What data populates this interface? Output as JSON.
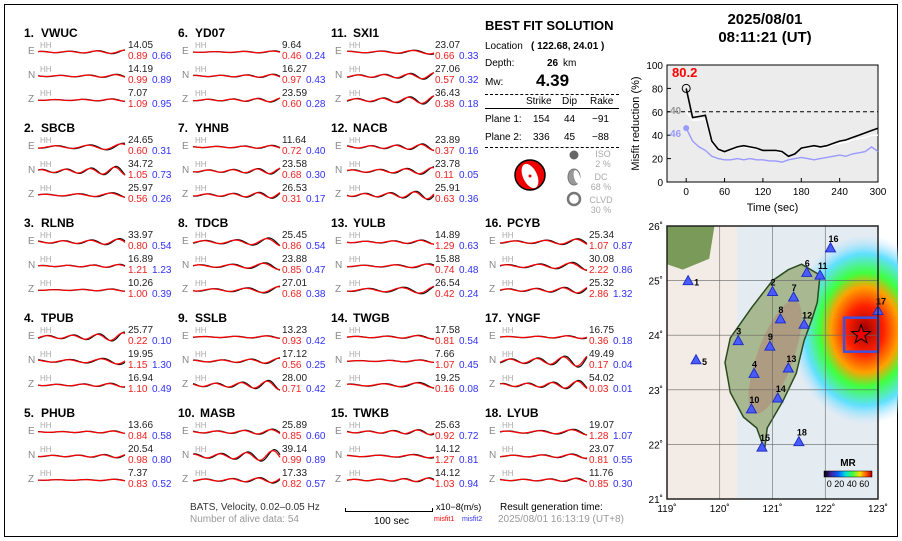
{
  "stations": [
    {
      "num": "1.",
      "name": "VWUC",
      "comps": [
        {
          "c": "E",
          "amp": "14.05",
          "m1": "0.89",
          "m2": "0.66"
        },
        {
          "c": "N",
          "amp": "14.19",
          "m1": "0.99",
          "m2": "0.89"
        },
        {
          "c": "Z",
          "amp": "7.07",
          "m1": "1.09",
          "m2": "0.95"
        }
      ]
    },
    {
      "num": "2.",
      "name": "SBCB",
      "comps": [
        {
          "c": "E",
          "amp": "24.65",
          "m1": "0.60",
          "m2": "0.31"
        },
        {
          "c": "N",
          "amp": "34.72",
          "m1": "1.05",
          "m2": "0.73"
        },
        {
          "c": "Z",
          "amp": "25.97",
          "m1": "0.56",
          "m2": "0.26"
        }
      ]
    },
    {
      "num": "3.",
      "name": "RLNB",
      "comps": [
        {
          "c": "E",
          "amp": "33.97",
          "m1": "0.80",
          "m2": "0.54"
        },
        {
          "c": "N",
          "amp": "16.89",
          "m1": "1.21",
          "m2": "1.23"
        },
        {
          "c": "Z",
          "amp": "10.26",
          "m1": "1.00",
          "m2": "0.39"
        }
      ]
    },
    {
      "num": "4.",
      "name": "TPUB",
      "comps": [
        {
          "c": "E",
          "amp": "25.77",
          "m1": "0.22",
          "m2": "0.10"
        },
        {
          "c": "N",
          "amp": "19.95",
          "m1": "1.15",
          "m2": "1.30"
        },
        {
          "c": "Z",
          "amp": "16.94",
          "m1": "1.10",
          "m2": "0.49"
        }
      ]
    },
    {
      "num": "5.",
      "name": "PHUB",
      "comps": [
        {
          "c": "E",
          "amp": "13.66",
          "m1": "0.84",
          "m2": "0.58"
        },
        {
          "c": "N",
          "amp": "20.54",
          "m1": "0.98",
          "m2": "0.80"
        },
        {
          "c": "Z",
          "amp": "7.37",
          "m1": "0.83",
          "m2": "0.52"
        }
      ]
    },
    {
      "num": "6.",
      "name": "YD07",
      "comps": [
        {
          "c": "E",
          "amp": "9.64",
          "m1": "0.46",
          "m2": "0.24"
        },
        {
          "c": "N",
          "amp": "16.27",
          "m1": "0.97",
          "m2": "0.43"
        },
        {
          "c": "Z",
          "amp": "23.59",
          "m1": "0.60",
          "m2": "0.28"
        }
      ]
    },
    {
      "num": "7.",
      "name": "YHNB",
      "comps": [
        {
          "c": "E",
          "amp": "11.64",
          "m1": "0.72",
          "m2": "0.40"
        },
        {
          "c": "N",
          "amp": "23.58",
          "m1": "0.68",
          "m2": "0.30"
        },
        {
          "c": "Z",
          "amp": "26.53",
          "m1": "0.31",
          "m2": "0.17"
        }
      ]
    },
    {
      "num": "8.",
      "name": "TDCB",
      "comps": [
        {
          "c": "E",
          "amp": "25.45",
          "m1": "0.86",
          "m2": "0.54"
        },
        {
          "c": "N",
          "amp": "23.88",
          "m1": "0.85",
          "m2": "0.47"
        },
        {
          "c": "Z",
          "amp": "27.01",
          "m1": "0.68",
          "m2": "0.38"
        }
      ]
    },
    {
      "num": "9.",
      "name": "SSLB",
      "comps": [
        {
          "c": "E",
          "amp": "13.23",
          "m1": "0.93",
          "m2": "0.42"
        },
        {
          "c": "N",
          "amp": "17.12",
          "m1": "0.56",
          "m2": "0.25"
        },
        {
          "c": "Z",
          "amp": "28.00",
          "m1": "0.71",
          "m2": "0.42"
        }
      ]
    },
    {
      "num": "10.",
      "name": "MASB",
      "comps": [
        {
          "c": "E",
          "amp": "25.89",
          "m1": "0.85",
          "m2": "0.60"
        },
        {
          "c": "N",
          "amp": "39.14",
          "m1": "0.99",
          "m2": "0.89"
        },
        {
          "c": "Z",
          "amp": "17.33",
          "m1": "0.82",
          "m2": "0.57"
        }
      ]
    },
    {
      "num": "11.",
      "name": "SXI1",
      "comps": [
        {
          "c": "E",
          "amp": "23.07",
          "m1": "0.66",
          "m2": "0.33"
        },
        {
          "c": "N",
          "amp": "27.06",
          "m1": "0.57",
          "m2": "0.32"
        },
        {
          "c": "Z",
          "amp": "36.43",
          "m1": "0.38",
          "m2": "0.18"
        }
      ]
    },
    {
      "num": "12.",
      "name": "NACB",
      "comps": [
        {
          "c": "E",
          "amp": "23.89",
          "m1": "0.37",
          "m2": "0.16"
        },
        {
          "c": "N",
          "amp": "23.78",
          "m1": "0.11",
          "m2": "0.05"
        },
        {
          "c": "Z",
          "amp": "25.91",
          "m1": "0.63",
          "m2": "0.36"
        }
      ]
    },
    {
      "num": "13.",
      "name": "YULB",
      "comps": [
        {
          "c": "E",
          "amp": "14.89",
          "m1": "1.29",
          "m2": "0.63"
        },
        {
          "c": "N",
          "amp": "15.88",
          "m1": "0.74",
          "m2": "0.48"
        },
        {
          "c": "Z",
          "amp": "26.54",
          "m1": "0.42",
          "m2": "0.24"
        }
      ]
    },
    {
      "num": "14.",
      "name": "TWGB",
      "comps": [
        {
          "c": "E",
          "amp": "17.58",
          "m1": "0.81",
          "m2": "0.54"
        },
        {
          "c": "N",
          "amp": "7.66",
          "m1": "1.07",
          "m2": "0.45"
        },
        {
          "c": "Z",
          "amp": "19.25",
          "m1": "0.16",
          "m2": "0.08"
        }
      ]
    },
    {
      "num": "15.",
      "name": "TWKB",
      "comps": [
        {
          "c": "E",
          "amp": "25.63",
          "m1": "0.92",
          "m2": "0.72"
        },
        {
          "c": "N",
          "amp": "14.12",
          "m1": "1.27",
          "m2": "0.81"
        },
        {
          "c": "Z",
          "amp": "14.12",
          "m1": "1.03",
          "m2": "0.94"
        }
      ]
    },
    {
      "num": "16.",
      "name": "PCYB",
      "comps": [
        {
          "c": "E",
          "amp": "25.34",
          "m1": "1.07",
          "m2": "0.87"
        },
        {
          "c": "N",
          "amp": "30.08",
          "m1": "2.22",
          "m2": "0.86"
        },
        {
          "c": "Z",
          "amp": "25.32",
          "m1": "2.86",
          "m2": "1.32"
        }
      ]
    },
    {
      "num": "17.",
      "name": "YNGF",
      "comps": [
        {
          "c": "E",
          "amp": "16.75",
          "m1": "0.36",
          "m2": "0.18"
        },
        {
          "c": "N",
          "amp": "49.49",
          "m1": "0.17",
          "m2": "0.04"
        },
        {
          "c": "Z",
          "amp": "54.02",
          "m1": "0.03",
          "m2": "0.01"
        }
      ]
    },
    {
      "num": "18.",
      "name": "LYUB",
      "comps": [
        {
          "c": "E",
          "amp": "19.07",
          "m1": "1.28",
          "m2": "1.07"
        },
        {
          "c": "N",
          "amp": "23.07",
          "m1": "0.81",
          "m2": "0.55"
        },
        {
          "c": "Z",
          "amp": "11.76",
          "m1": "0.85",
          "m2": "0.30"
        }
      ]
    }
  ],
  "channel_label": "HH",
  "solution": {
    "title": "BEST FIT SOLUTION",
    "location_label": "Location",
    "location_value": "( 122.68,  24.01 )",
    "depth_label": "Depth:",
    "depth_value": "26",
    "depth_unit": "km",
    "mw_label": "Mw:",
    "mw_value": "4.39",
    "headers": [
      "Strike",
      "Dip",
      "Rake"
    ],
    "planes": [
      {
        "label": "Plane 1:",
        "strike": "154",
        "dip": "44",
        "rake": "−91"
      },
      {
        "label": "Plane 2:",
        "strike": "336",
        "dip": "45",
        "rake": "−88"
      }
    ],
    "iso_label": "ISO",
    "iso_value": "2  %",
    "dc_label": "DC",
    "dc_value": "68 %",
    "clvd_label": "CLVD",
    "clvd_value": "30 %"
  },
  "event": {
    "date": "2025/08/01",
    "time": "08:11:21  (UT)",
    "lon": 122.68,
    "lat": 24.01
  },
  "footer": {
    "filter": "BATS, Velocity, 0.02–0.05 Hz",
    "alive": "Number of alive data: 54",
    "scale": "100 sec",
    "units": "x10−8(m/s)",
    "misfit1": "misfit1",
    "misfit2": "misfit2",
    "gen_label": "Result generation time:",
    "gen_time": "2025/08/01 16:13:19 (UT+8)"
  },
  "chart_data": {
    "type": "line",
    "xlabel": "Time (sec)",
    "ylabel": "Misfit reduction (%)",
    "xlim": [
      -30,
      300
    ],
    "ylim": [
      0,
      100
    ],
    "xticks": [
      "0",
      "60",
      "120",
      "180",
      "240",
      "300"
    ],
    "yticks": [
      "0",
      "20",
      "40",
      "60",
      "80",
      "100"
    ],
    "threshold": 60,
    "peak_label": "80.2",
    "gray_label": "40",
    "blue_label": "46",
    "x": [
      0,
      10,
      20,
      30,
      40,
      50,
      60,
      70,
      80,
      90,
      100,
      110,
      120,
      130,
      140,
      150,
      160,
      170,
      180,
      190,
      200,
      210,
      220,
      230,
      240,
      250,
      260,
      270,
      280,
      290,
      300
    ],
    "series": [
      {
        "name": "best",
        "color": "#000000",
        "values": [
          80,
          55,
          56,
          57,
          35,
          28,
          26,
          28,
          30,
          31,
          30,
          29,
          27,
          27,
          27,
          26,
          22,
          24,
          29,
          30,
          31,
          30,
          31,
          33,
          35,
          36,
          38,
          40,
          42,
          44,
          46
        ]
      },
      {
        "name": "gray",
        "color": "#ffffff",
        "values": [
          60,
          53,
          53,
          54,
          33,
          27,
          26,
          27,
          29,
          30,
          29,
          28,
          27,
          26,
          26,
          25,
          22,
          24,
          28,
          29,
          30,
          29,
          30,
          32,
          33,
          34,
          36,
          37,
          38,
          40,
          40
        ]
      },
      {
        "name": "blue",
        "color": "#9999ff",
        "values": [
          46,
          35,
          30,
          27,
          22,
          20,
          19,
          19,
          20,
          19,
          20,
          19,
          19,
          18,
          18,
          17,
          19,
          20,
          21,
          20,
          19,
          20,
          21,
          22,
          23,
          22,
          24,
          25,
          26,
          30,
          26
        ]
      }
    ]
  },
  "map": {
    "lon_ticks": [
      "119˚",
      "120˚",
      "121˚",
      "122˚",
      "123˚"
    ],
    "lat_ticks": [
      "26˚",
      "25˚",
      "24˚",
      "23˚",
      "22˚",
      "21˚"
    ],
    "colorbar_title": "MR",
    "colorbar_ticks": "0 20 40 60",
    "stations": [
      {
        "id": "1",
        "lon": 119.4,
        "lat": 25.0
      },
      {
        "id": "2",
        "lon": 121.0,
        "lat": 24.8
      },
      {
        "id": "3",
        "lon": 120.35,
        "lat": 23.9
      },
      {
        "id": "4",
        "lon": 120.65,
        "lat": 23.3
      },
      {
        "id": "5",
        "lon": 119.55,
        "lat": 23.55
      },
      {
        "id": "6",
        "lon": 121.65,
        "lat": 25.15
      },
      {
        "id": "7",
        "lon": 121.4,
        "lat": 24.7
      },
      {
        "id": "8",
        "lon": 121.15,
        "lat": 24.3
      },
      {
        "id": "9",
        "lon": 120.95,
        "lat": 23.8
      },
      {
        "id": "10",
        "lon": 120.6,
        "lat": 22.65
      },
      {
        "id": "11",
        "lon": 121.9,
        "lat": 25.1
      },
      {
        "id": "12",
        "lon": 121.6,
        "lat": 24.2
      },
      {
        "id": "13",
        "lon": 121.3,
        "lat": 23.4
      },
      {
        "id": "14",
        "lon": 121.1,
        "lat": 22.85
      },
      {
        "id": "15",
        "lon": 120.8,
        "lat": 21.95
      },
      {
        "id": "16",
        "lon": 122.1,
        "lat": 25.6
      },
      {
        "id": "17",
        "lon": 123.0,
        "lat": 24.45
      },
      {
        "id": "18",
        "lon": 121.5,
        "lat": 22.05
      }
    ]
  }
}
